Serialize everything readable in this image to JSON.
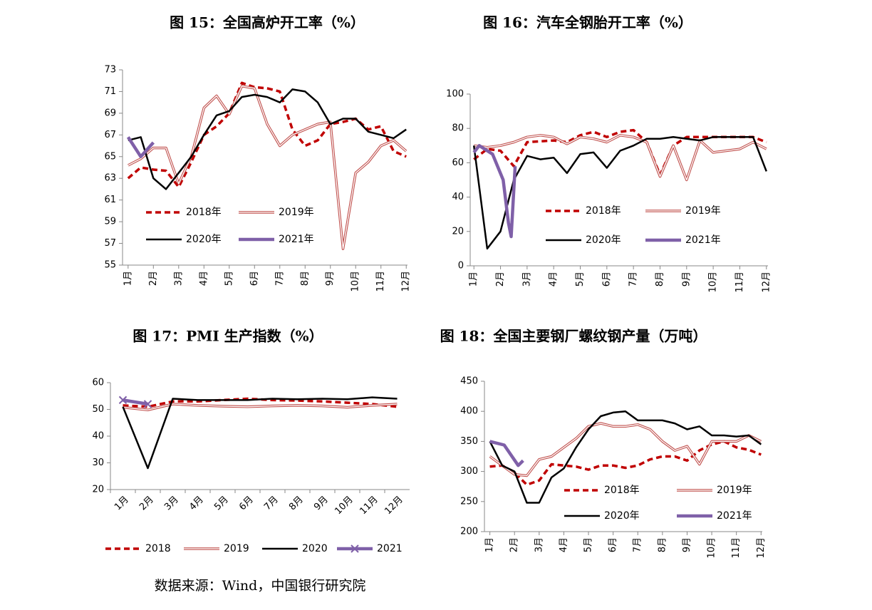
{
  "chart_data": [
    {
      "type": "line",
      "title": "图 15：全国高炉开工率（%）",
      "x": [
        1,
        1.5,
        2,
        2.5,
        3,
        3.5,
        4,
        4.5,
        5,
        5.5,
        6,
        6.5,
        7,
        7.5,
        8,
        8.5,
        9,
        9.5,
        10,
        10.5,
        11,
        11.5,
        12
      ],
      "xlim": [
        0.78,
        12.05
      ],
      "xticks": [
        {
          "value": 1,
          "label": "1月"
        },
        {
          "value": 2,
          "label": "2月"
        },
        {
          "value": 3,
          "label": "3月"
        },
        {
          "value": 4,
          "label": "4月"
        },
        {
          "value": 5,
          "label": "5月"
        },
        {
          "value": 6,
          "label": "6月"
        },
        {
          "value": 7,
          "label": "7月"
        },
        {
          "value": 8,
          "label": "8月"
        },
        {
          "value": 9,
          "label": "9月"
        },
        {
          "value": 10,
          "label": "10月"
        },
        {
          "value": 11,
          "label": "11月"
        },
        {
          "value": 12,
          "label": "12月"
        }
      ],
      "ylim": [
        55,
        73
      ],
      "yticks": [
        55,
        57,
        59,
        61,
        63,
        65,
        67,
        69,
        71,
        73
      ],
      "series": [
        {
          "name": "2018年",
          "color": "#c00000",
          "style": "dashed",
          "values": [
            63,
            64,
            63.8,
            63.7,
            62.2,
            64.5,
            67,
            67.8,
            69,
            71.8,
            71.4,
            71.3,
            71,
            67.5,
            66,
            66.5,
            68,
            68.2,
            68.5,
            67.5,
            67.8,
            65.5,
            65
          ]
        },
        {
          "name": "2019年",
          "color": "#c0504d",
          "style": "double",
          "values": [
            64.2,
            64.8,
            65.8,
            65.8,
            62.5,
            65,
            69.5,
            70.6,
            68.9,
            71.5,
            71.3,
            68,
            66,
            67,
            67.5,
            68,
            68.2,
            56.5,
            63.5,
            64.5,
            66,
            66.5,
            65.5
          ]
        },
        {
          "name": "2020年",
          "color": "#000000",
          "style": "solid",
          "values": [
            66.5,
            66.8,
            63,
            62,
            63.5,
            65,
            67,
            68.8,
            69.2,
            70.5,
            70.7,
            70.5,
            70,
            71.2,
            71,
            70,
            68,
            68.5,
            68.5,
            67.3,
            67,
            66.7,
            67.5
          ]
        },
        {
          "name": "2021年",
          "color": "#7f60a8",
          "style": "thick",
          "values": [
            66.8,
            65,
            66.3,
            null,
            null,
            null,
            null,
            null,
            null,
            null,
            null,
            null,
            null,
            null,
            null,
            null,
            null,
            null,
            null,
            null,
            null,
            null,
            null
          ]
        }
      ]
    },
    {
      "type": "line",
      "title": "图 16：汽车全钢胎开工率（%）",
      "x": [
        1,
        1.5,
        2,
        2.5,
        3,
        3.5,
        4,
        4.5,
        5,
        5.5,
        6,
        6.5,
        7,
        7.5,
        8,
        8.5,
        9,
        9.5,
        10,
        10.5,
        11,
        11.5,
        12
      ],
      "xlim": [
        0.86,
        12.06
      ],
      "xticks": [
        {
          "value": 1,
          "label": "1月"
        },
        {
          "value": 2,
          "label": "2月"
        },
        {
          "value": 3,
          "label": "3月"
        },
        {
          "value": 4,
          "label": "4月"
        },
        {
          "value": 5,
          "label": "5月"
        },
        {
          "value": 6,
          "label": "6月"
        },
        {
          "value": 7,
          "label": "7月"
        },
        {
          "value": 8,
          "label": "8月"
        },
        {
          "value": 9,
          "label": "9月"
        },
        {
          "value": 10,
          "label": "10月"
        },
        {
          "value": 11,
          "label": "11月"
        },
        {
          "value": 12,
          "label": "12月"
        }
      ],
      "ylim": [
        0,
        100
      ],
      "yticks": [
        0,
        20,
        40,
        60,
        80,
        100
      ],
      "series": [
        {
          "name": "2018年",
          "color": "#c00000",
          "style": "dashed",
          "values": [
            62,
            68,
            67,
            58,
            72,
            72.5,
            73,
            72,
            76,
            78,
            75,
            78,
            79,
            72,
            53,
            70,
            75,
            75,
            75,
            75,
            75,
            75,
            72
          ]
        },
        {
          "name": "2019年",
          "color": "#c0504d",
          "style": "double",
          "values": [
            70,
            69,
            70,
            72,
            75,
            76,
            75,
            71,
            75,
            74,
            72,
            76,
            75,
            72,
            52,
            70,
            50,
            73,
            66,
            67,
            68,
            72,
            68
          ]
        },
        {
          "name": "2020年",
          "color": "#000000",
          "style": "solid",
          "values": [
            70,
            10,
            20,
            50,
            64,
            62,
            63,
            54,
            65,
            66,
            57,
            67,
            70,
            74,
            74,
            75,
            74,
            73,
            75,
            75,
            75,
            75,
            55
          ]
        },
        {
          "name": "2021年",
          "color": "#7f60a8",
          "style": "thick",
          "x": [
            1,
            1.2,
            1.7,
            2.1,
            2.3,
            2.4,
            2.55
          ],
          "values": [
            66,
            70,
            65,
            50,
            25,
            17,
            58
          ]
        }
      ]
    },
    {
      "type": "line",
      "title": "图 17：PMI 生产指数（%）",
      "categories": [
        "1月",
        "2月",
        "3月",
        "4月",
        "5月",
        "6月",
        "7月",
        "8月",
        "9月",
        "10月",
        "11月",
        "12月"
      ],
      "ylim": [
        20,
        60
      ],
      "yticks": [
        20,
        30,
        40,
        50,
        60
      ],
      "series": [
        {
          "name": "2018",
          "color": "#c00000",
          "style": "dashed",
          "values": [
            51.5,
            51,
            53,
            53,
            53.5,
            54,
            53.5,
            53.3,
            53,
            52.5,
            52,
            51
          ]
        },
        {
          "name": "2019",
          "color": "#c0504d",
          "style": "double",
          "values": [
            50.8,
            49.8,
            52,
            51.5,
            51.2,
            51,
            51.3,
            51.5,
            51.3,
            50.8,
            51.5,
            52
          ]
        },
        {
          "name": "2020",
          "color": "#000000",
          "style": "solid",
          "values": [
            51,
            28,
            54,
            53.5,
            53.5,
            53.5,
            54,
            53.8,
            54,
            53.8,
            54.5,
            54
          ]
        },
        {
          "name": "2021",
          "color": "#7f60a8",
          "style": "thick",
          "marker": "x",
          "values": [
            53.5,
            52,
            null,
            null,
            null,
            null,
            null,
            null,
            null,
            null,
            null,
            null
          ]
        }
      ]
    },
    {
      "type": "line",
      "title": "图 18：全国主要钢厂螺纹钢产量（万吨）",
      "x": [
        1,
        1.5,
        2,
        2.5,
        3,
        3.5,
        4,
        4.5,
        5,
        5.5,
        6,
        6.5,
        7,
        7.5,
        8,
        8.5,
        9,
        9.5,
        10,
        10.5,
        11,
        11.5,
        12
      ],
      "xlim": [
        0.78,
        12.05
      ],
      "xticks": [
        {
          "value": 1,
          "label": "1月"
        },
        {
          "value": 2,
          "label": "2月"
        },
        {
          "value": 3,
          "label": "3月"
        },
        {
          "value": 4,
          "label": "4月"
        },
        {
          "value": 5,
          "label": "5月"
        },
        {
          "value": 6,
          "label": "6月"
        },
        {
          "value": 7,
          "label": "7月"
        },
        {
          "value": 8,
          "label": "8月"
        },
        {
          "value": 9,
          "label": "9月"
        },
        {
          "value": 10,
          "label": "10月"
        },
        {
          "value": 11,
          "label": "11月"
        },
        {
          "value": 12,
          "label": "12月"
        }
      ],
      "ylim": [
        200,
        450
      ],
      "yticks": [
        200,
        250,
        300,
        350,
        400,
        450
      ],
      "series": [
        {
          "name": "2018年",
          "color": "#c00000",
          "style": "dashed",
          "values": [
            308,
            310,
            298,
            278,
            285,
            312,
            310,
            308,
            303,
            310,
            310,
            306,
            310,
            320,
            325,
            325,
            318,
            335,
            345,
            350,
            340,
            336,
            328
          ]
        },
        {
          "name": "2019年",
          "color": "#c0504d",
          "style": "double",
          "values": [
            325,
            310,
            295,
            293,
            320,
            325,
            340,
            355,
            375,
            380,
            375,
            375,
            378,
            370,
            350,
            335,
            342,
            312,
            350,
            350,
            350,
            360,
            350
          ]
        },
        {
          "name": "2020年",
          "color": "#000000",
          "style": "solid",
          "values": [
            350,
            310,
            300,
            248,
            248,
            290,
            305,
            340,
            370,
            392,
            398,
            400,
            385,
            385,
            385,
            380,
            370,
            375,
            360,
            360,
            358,
            360,
            345
          ]
        },
        {
          "name": "2021年",
          "color": "#7f60a8",
          "style": "thick",
          "x": [
            1,
            1.58,
            2.15,
            2.35
          ],
          "values": [
            350,
            344,
            310,
            318
          ]
        }
      ]
    }
  ],
  "source": "数据来源：Wind，中国银行研究院"
}
